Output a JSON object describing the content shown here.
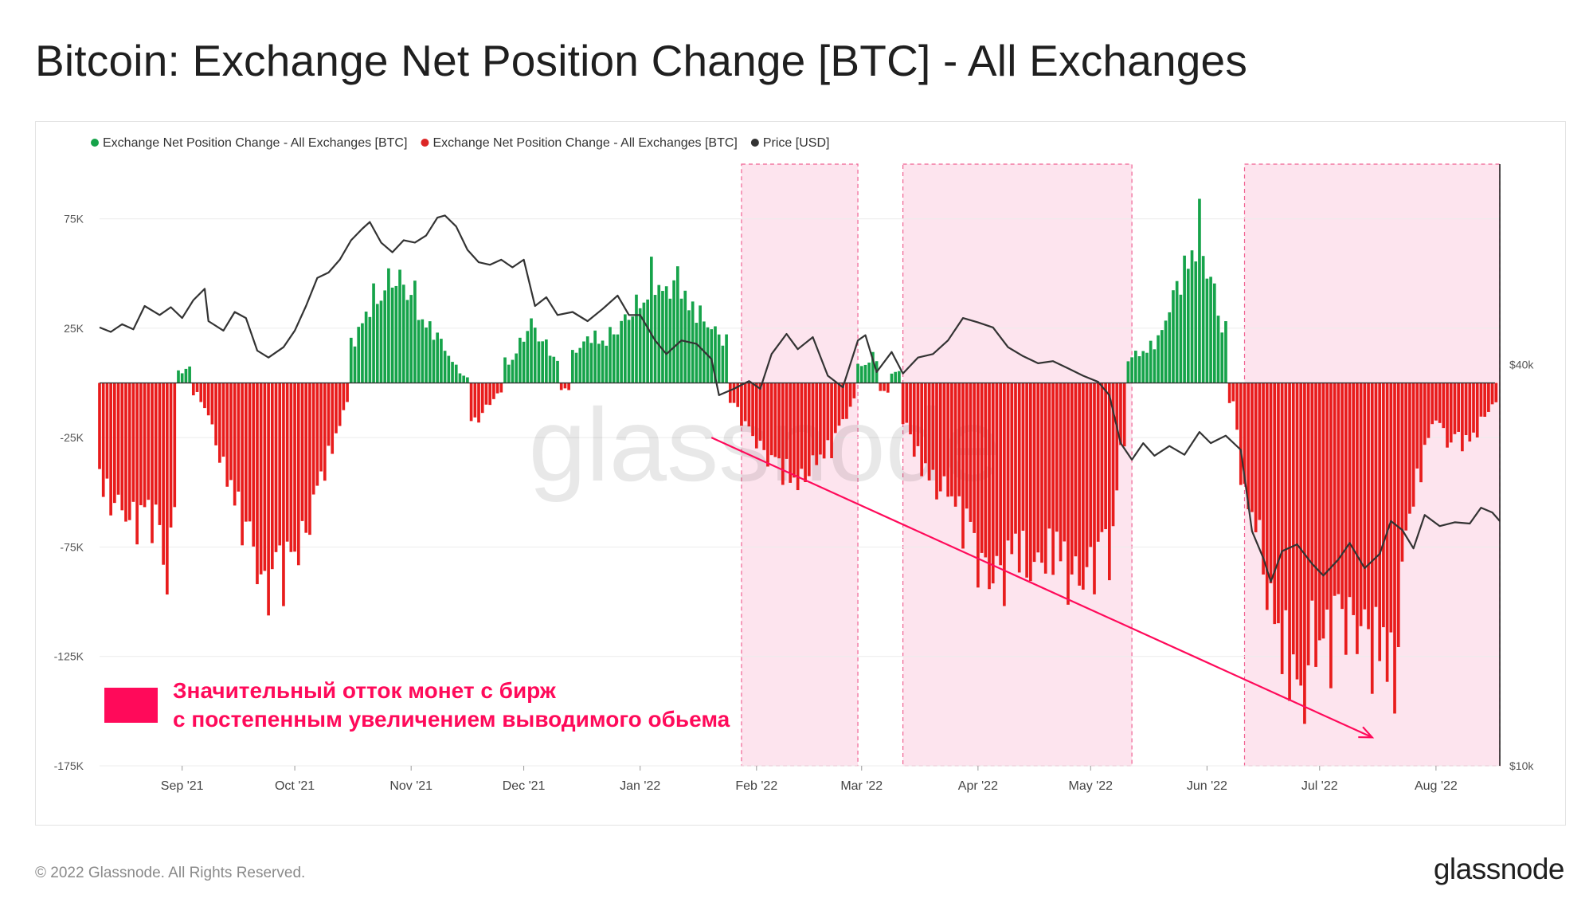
{
  "page": {
    "title": "Bitcoin: Exchange Net Position Change [BTC] - All Exchanges",
    "footer": "© 2022 Glassnode. All Rights Reserved.",
    "logo": "glassnode",
    "watermark": "glassnode"
  },
  "annotation": {
    "line1": "Значительный отток монет с бирж",
    "line2": "с постепенным увеличением выводимого обьема",
    "color": "#ff0a5a",
    "arrow": {
      "from": [
        "2022-01-20",
        -25000
      ],
      "to": [
        "2022-07-15",
        -162000
      ]
    }
  },
  "chart_data": {
    "type": "bar",
    "legend_position": "top-left",
    "grid": true,
    "legend": [
      {
        "label": "Exchange Net Position Change - All Exchanges [BTC]",
        "color": "#16a34a"
      },
      {
        "label": "Exchange Net Position Change - All Exchanges [BTC]",
        "color": "#dc2626"
      },
      {
        "label": "Price [USD]",
        "color": "#333333"
      }
    ],
    "x_range": [
      "2021-08-10",
      "2022-08-18"
    ],
    "x_ticks": [
      {
        "date": "2021-09-01",
        "label": "Sep '21"
      },
      {
        "date": "2021-10-01",
        "label": "Oct '21"
      },
      {
        "date": "2021-11-01",
        "label": "Nov '21"
      },
      {
        "date": "2021-12-01",
        "label": "Dec '21"
      },
      {
        "date": "2022-01-01",
        "label": "Jan '22"
      },
      {
        "date": "2022-02-01",
        "label": "Feb '22"
      },
      {
        "date": "2022-03-01",
        "label": "Mar '22"
      },
      {
        "date": "2022-04-01",
        "label": "Apr '22"
      },
      {
        "date": "2022-05-01",
        "label": "May '22"
      },
      {
        "date": "2022-06-01",
        "label": "Jun '22"
      },
      {
        "date": "2022-07-01",
        "label": "Jul '22"
      },
      {
        "date": "2022-08-01",
        "label": "Aug '22"
      }
    ],
    "y_left": {
      "range": [
        -175000,
        100000
      ],
      "ticks": [
        {
          "value": 75000,
          "label": "75K"
        },
        {
          "value": 25000,
          "label": "25K"
        },
        {
          "value": -25000,
          "label": "-25K"
        },
        {
          "value": -75000,
          "label": "-75K"
        },
        {
          "value": -125000,
          "label": "-125K"
        },
        {
          "value": -175000,
          "label": "-175K"
        }
      ]
    },
    "y_right": {
      "scale": "log",
      "range": [
        10000,
        80000
      ],
      "ticks": [
        {
          "value": 40000,
          "label": "$40k"
        },
        {
          "value": 10000,
          "label": "$10k"
        }
      ]
    },
    "highlight_color": "#fde4ee",
    "highlight_border": "#f06292",
    "highlight_ranges": [
      [
        "2022-01-28",
        "2022-02-28"
      ],
      [
        "2022-03-12",
        "2022-05-12"
      ],
      [
        "2022-06-11",
        "2022-08-18"
      ]
    ],
    "net_position_segments": [
      [
        "2021-08-10",
        -48000
      ],
      [
        "2021-08-15",
        -58000
      ],
      [
        "2021-08-20",
        -65000
      ],
      [
        "2021-08-25",
        -62000
      ],
      [
        "2021-08-28",
        -92000
      ],
      [
        "2021-08-30",
        -60000
      ],
      [
        "2021-09-01",
        5000
      ],
      [
        "2021-09-03",
        9000
      ],
      [
        "2021-09-05",
        -5000
      ],
      [
        "2021-09-08",
        -15000
      ],
      [
        "2021-09-12",
        -40000
      ],
      [
        "2021-09-16",
        -60000
      ],
      [
        "2021-09-20",
        -78000
      ],
      [
        "2021-09-23",
        -97000
      ],
      [
        "2021-09-26",
        -90000
      ],
      [
        "2021-09-29",
        -85000
      ],
      [
        "2021-10-03",
        -75000
      ],
      [
        "2021-10-07",
        -50000
      ],
      [
        "2021-10-10",
        -35000
      ],
      [
        "2021-10-13",
        -20000
      ],
      [
        "2021-10-15",
        -8000
      ],
      [
        "2021-10-17",
        20000
      ],
      [
        "2021-10-20",
        33000
      ],
      [
        "2021-10-24",
        45000
      ],
      [
        "2021-10-28",
        48000
      ],
      [
        "2021-11-01",
        45000
      ],
      [
        "2021-11-04",
        30000
      ],
      [
        "2021-11-08",
        22000
      ],
      [
        "2021-11-12",
        10000
      ],
      [
        "2021-11-15",
        3000
      ],
      [
        "2021-11-18",
        -18000
      ],
      [
        "2021-11-21",
        -12000
      ],
      [
        "2021-11-24",
        -5000
      ],
      [
        "2021-11-27",
        10000
      ],
      [
        "2021-11-30",
        18000
      ],
      [
        "2021-12-03",
        28000
      ],
      [
        "2021-12-06",
        20000
      ],
      [
        "2021-12-09",
        12000
      ],
      [
        "2021-12-12",
        -3000
      ],
      [
        "2021-12-15",
        15000
      ],
      [
        "2021-12-19",
        22000
      ],
      [
        "2021-12-23",
        20000
      ],
      [
        "2021-12-27",
        28000
      ],
      [
        "2021-12-31",
        35000
      ],
      [
        "2022-01-04",
        50000
      ],
      [
        "2022-01-07",
        42000
      ],
      [
        "2022-01-11",
        48000
      ],
      [
        "2022-01-15",
        35000
      ],
      [
        "2022-01-19",
        28000
      ],
      [
        "2022-01-23",
        20000
      ],
      [
        "2022-01-26",
        -10000
      ],
      [
        "2022-01-29",
        -20000
      ],
      [
        "2022-02-02",
        -30000
      ],
      [
        "2022-02-06",
        -38000
      ],
      [
        "2022-02-09",
        -42000
      ],
      [
        "2022-02-12",
        -48000
      ],
      [
        "2022-02-15",
        -40000
      ],
      [
        "2022-02-18",
        -35000
      ],
      [
        "2022-02-21",
        -30000
      ],
      [
        "2022-02-24",
        -18000
      ],
      [
        "2022-02-27",
        -8000
      ],
      [
        "2022-03-01",
        8000
      ],
      [
        "2022-03-04",
        12000
      ],
      [
        "2022-03-07",
        -4000
      ],
      [
        "2022-03-10",
        5000
      ],
      [
        "2022-03-13",
        -20000
      ],
      [
        "2022-03-17",
        -40000
      ],
      [
        "2022-03-21",
        -48000
      ],
      [
        "2022-03-25",
        -52000
      ],
      [
        "2022-03-29",
        -70000
      ],
      [
        "2022-04-02",
        -85000
      ],
      [
        "2022-04-06",
        -93000
      ],
      [
        "2022-04-09",
        -85000
      ],
      [
        "2022-04-12",
        -78000
      ],
      [
        "2022-04-15",
        -88000
      ],
      [
        "2022-04-19",
        -80000
      ],
      [
        "2022-04-23",
        -82000
      ],
      [
        "2022-04-27",
        -95000
      ],
      [
        "2022-05-01",
        -85000
      ],
      [
        "2022-05-04",
        -82000
      ],
      [
        "2022-05-07",
        -75000
      ],
      [
        "2022-05-09",
        -28000
      ],
      [
        "2022-05-12",
        12000
      ],
      [
        "2022-05-15",
        15000
      ],
      [
        "2022-05-19",
        20000
      ],
      [
        "2022-05-23",
        40000
      ],
      [
        "2022-05-27",
        58000
      ],
      [
        "2022-05-30",
        72000
      ],
      [
        "2022-06-02",
        50000
      ],
      [
        "2022-06-05",
        25000
      ],
      [
        "2022-06-08",
        -10000
      ],
      [
        "2022-06-11",
        -55000
      ],
      [
        "2022-06-14",
        -65000
      ],
      [
        "2022-06-17",
        -95000
      ],
      [
        "2022-06-20",
        -120000
      ],
      [
        "2022-06-23",
        -130000
      ],
      [
        "2022-06-26",
        -152000
      ],
      [
        "2022-06-29",
        -118000
      ],
      [
        "2022-07-02",
        -125000
      ],
      [
        "2022-07-06",
        -112000
      ],
      [
        "2022-07-10",
        -110000
      ],
      [
        "2022-07-14",
        -123000
      ],
      [
        "2022-07-18",
        -125000
      ],
      [
        "2022-07-21",
        -140000
      ],
      [
        "2022-07-24",
        -68000
      ],
      [
        "2022-07-28",
        -40000
      ],
      [
        "2022-08-01",
        -15000
      ],
      [
        "2022-08-04",
        -28000
      ],
      [
        "2022-08-07",
        -25000
      ],
      [
        "2022-08-10",
        -30000
      ],
      [
        "2022-08-13",
        -18000
      ],
      [
        "2022-08-16",
        -10000
      ]
    ],
    "price_usd": [
      [
        "2021-08-10",
        45500
      ],
      [
        "2021-08-13",
        44800
      ],
      [
        "2021-08-16",
        46000
      ],
      [
        "2021-08-19",
        45200
      ],
      [
        "2021-08-22",
        49000
      ],
      [
        "2021-08-26",
        47500
      ],
      [
        "2021-08-29",
        48800
      ],
      [
        "2021-09-01",
        47000
      ],
      [
        "2021-09-04",
        50000
      ],
      [
        "2021-09-07",
        52000
      ],
      [
        "2021-09-08",
        46500
      ],
      [
        "2021-09-12",
        45000
      ],
      [
        "2021-09-15",
        48000
      ],
      [
        "2021-09-18",
        47000
      ],
      [
        "2021-09-21",
        42000
      ],
      [
        "2021-09-24",
        41000
      ],
      [
        "2021-09-28",
        42500
      ],
      [
        "2021-10-01",
        45000
      ],
      [
        "2021-10-04",
        49000
      ],
      [
        "2021-10-07",
        54000
      ],
      [
        "2021-10-10",
        55000
      ],
      [
        "2021-10-13",
        57500
      ],
      [
        "2021-10-16",
        61500
      ],
      [
        "2021-10-19",
        64000
      ],
      [
        "2021-10-21",
        65500
      ],
      [
        "2021-10-24",
        61000
      ],
      [
        "2021-10-27",
        59000
      ],
      [
        "2021-10-30",
        61500
      ],
      [
        "2021-11-02",
        61000
      ],
      [
        "2021-11-05",
        62500
      ],
      [
        "2021-11-08",
        66500
      ],
      [
        "2021-11-10",
        67000
      ],
      [
        "2021-11-13",
        64500
      ],
      [
        "2021-11-16",
        59500
      ],
      [
        "2021-11-19",
        57000
      ],
      [
        "2021-11-22",
        56500
      ],
      [
        "2021-11-25",
        57500
      ],
      [
        "2021-11-28",
        56000
      ],
      [
        "2021-12-01",
        57500
      ],
      [
        "2021-12-04",
        49000
      ],
      [
        "2021-12-07",
        50500
      ],
      [
        "2021-12-10",
        47500
      ],
      [
        "2021-12-14",
        48000
      ],
      [
        "2021-12-18",
        46500
      ],
      [
        "2021-12-22",
        48500
      ],
      [
        "2021-12-26",
        50800
      ],
      [
        "2021-12-29",
        47500
      ],
      [
        "2022-01-01",
        47500
      ],
      [
        "2022-01-05",
        43500
      ],
      [
        "2022-01-08",
        41500
      ],
      [
        "2022-01-12",
        43500
      ],
      [
        "2022-01-16",
        43000
      ],
      [
        "2022-01-20",
        40800
      ],
      [
        "2022-01-22",
        36000
      ],
      [
        "2022-01-26",
        36800
      ],
      [
        "2022-01-30",
        37800
      ],
      [
        "2022-02-02",
        36800
      ],
      [
        "2022-02-05",
        41500
      ],
      [
        "2022-02-09",
        44500
      ],
      [
        "2022-02-12",
        42200
      ],
      [
        "2022-02-16",
        44000
      ],
      [
        "2022-02-20",
        38500
      ],
      [
        "2022-02-24",
        37000
      ],
      [
        "2022-02-28",
        43500
      ],
      [
        "2022-03-02",
        44300
      ],
      [
        "2022-03-05",
        39000
      ],
      [
        "2022-03-09",
        41800
      ],
      [
        "2022-03-12",
        38800
      ],
      [
        "2022-03-16",
        41000
      ],
      [
        "2022-03-20",
        41500
      ],
      [
        "2022-03-24",
        43500
      ],
      [
        "2022-03-28",
        47000
      ],
      [
        "2022-04-01",
        46300
      ],
      [
        "2022-04-05",
        45500
      ],
      [
        "2022-04-09",
        42500
      ],
      [
        "2022-04-13",
        41200
      ],
      [
        "2022-04-17",
        40200
      ],
      [
        "2022-04-21",
        40500
      ],
      [
        "2022-04-25",
        39500
      ],
      [
        "2022-04-29",
        38500
      ],
      [
        "2022-05-03",
        37700
      ],
      [
        "2022-05-06",
        36000
      ],
      [
        "2022-05-09",
        30500
      ],
      [
        "2022-05-12",
        28800
      ],
      [
        "2022-05-15",
        30500
      ],
      [
        "2022-05-18",
        29200
      ],
      [
        "2022-05-22",
        30200
      ],
      [
        "2022-05-26",
        29300
      ],
      [
        "2022-05-30",
        31700
      ],
      [
        "2022-06-02",
        30500
      ],
      [
        "2022-06-06",
        31300
      ],
      [
        "2022-06-10",
        29800
      ],
      [
        "2022-06-13",
        22500
      ],
      [
        "2022-06-16",
        20500
      ],
      [
        "2022-06-18",
        18900
      ],
      [
        "2022-06-21",
        21000
      ],
      [
        "2022-06-25",
        21500
      ],
      [
        "2022-06-29",
        20100
      ],
      [
        "2022-07-02",
        19300
      ],
      [
        "2022-07-06",
        20400
      ],
      [
        "2022-07-09",
        21600
      ],
      [
        "2022-07-13",
        19800
      ],
      [
        "2022-07-17",
        20800
      ],
      [
        "2022-07-20",
        23300
      ],
      [
        "2022-07-23",
        22600
      ],
      [
        "2022-07-26",
        21200
      ],
      [
        "2022-07-29",
        23800
      ],
      [
        "2022-08-02",
        22900
      ],
      [
        "2022-08-06",
        23200
      ],
      [
        "2022-08-10",
        23100
      ],
      [
        "2022-08-13",
        24400
      ],
      [
        "2022-08-16",
        24000
      ],
      [
        "2022-08-18",
        23300
      ]
    ]
  }
}
